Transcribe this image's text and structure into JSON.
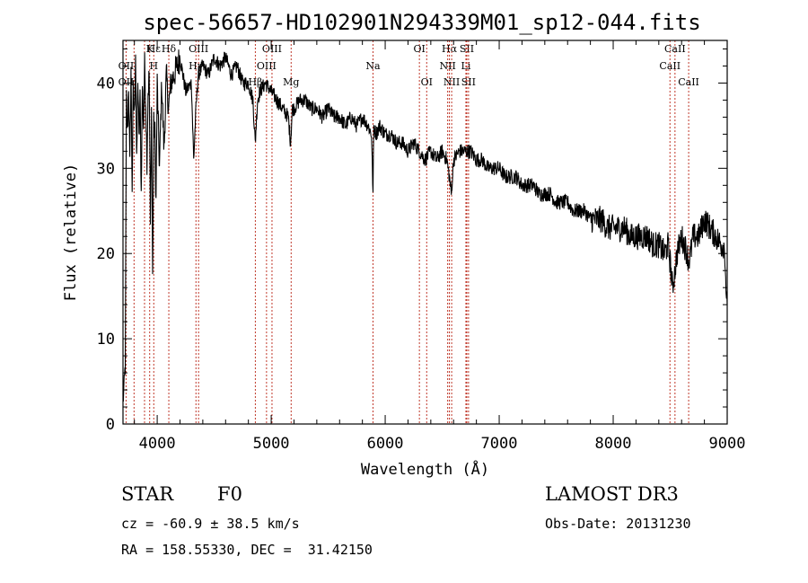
{
  "chart_data": {
    "type": "line",
    "title": "spec-56657-HD102901N294339M01_sp12-044.fits",
    "xlabel": "Wavelength (Å)",
    "ylabel": "Flux (relative)",
    "xlim": [
      3700,
      9000
    ],
    "ylim": [
      0,
      45
    ],
    "xticks": [
      4000,
      5000,
      6000,
      7000,
      8000,
      9000
    ],
    "yticks": [
      0,
      10,
      20,
      30,
      40
    ],
    "series": [
      {
        "name": "spectrum",
        "x": [
          3700,
          3710,
          3720,
          3730,
          3740,
          3750,
          3760,
          3770,
          3780,
          3790,
          3800,
          3810,
          3820,
          3830,
          3840,
          3850,
          3860,
          3870,
          3880,
          3890,
          3900,
          3910,
          3920,
          3930,
          3940,
          3950,
          3960,
          3970,
          3980,
          3990,
          4000,
          4020,
          4040,
          4060,
          4080,
          4100,
          4120,
          4150,
          4200,
          4250,
          4300,
          4320,
          4340,
          4360,
          4400,
          4450,
          4500,
          4550,
          4600,
          4650,
          4700,
          4750,
          4800,
          4840,
          4860,
          4880,
          4900,
          4950,
          5000,
          5050,
          5100,
          5150,
          5170,
          5185,
          5200,
          5250,
          5300,
          5350,
          5400,
          5450,
          5500,
          5550,
          5600,
          5650,
          5700,
          5750,
          5800,
          5850,
          5880,
          5893,
          5900,
          5920,
          5950,
          6000,
          6050,
          6100,
          6150,
          6200,
          6250,
          6300,
          6350,
          6400,
          6450,
          6500,
          6540,
          6563,
          6580,
          6600,
          6650,
          6700,
          6750,
          6800,
          6850,
          6900,
          6950,
          7000,
          7050,
          7100,
          7150,
          7200,
          7250,
          7300,
          7350,
          7400,
          7450,
          7500,
          7550,
          7600,
          7650,
          7700,
          7750,
          7800,
          7850,
          7900,
          7950,
          8000,
          8050,
          8100,
          8150,
          8200,
          8250,
          8300,
          8350,
          8400,
          8450,
          8480,
          8500,
          8520,
          8542,
          8560,
          8600,
          8650,
          8662,
          8680,
          8700,
          8750,
          8800,
          8850,
          8900,
          8950,
          8970,
          8980,
          8990,
          9000
        ],
        "y": [
          3,
          4,
          7,
          38,
          34,
          40,
          30,
          42,
          28,
          39,
          36,
          44,
          30,
          41,
          33,
          38,
          27,
          40,
          35,
          42,
          38,
          31,
          39,
          41,
          23,
          37,
          17,
          35,
          34,
          26,
          40,
          30,
          40,
          32,
          41,
          37,
          40,
          41,
          43,
          39,
          40,
          31,
          37,
          41,
          42,
          41,
          43,
          42,
          43,
          41,
          42,
          40,
          40,
          38,
          33,
          38,
          39,
          40,
          39,
          38,
          37,
          36,
          33,
          37,
          37,
          38,
          38,
          37,
          37,
          36,
          37,
          36,
          36,
          35,
          36,
          35,
          36,
          35,
          34,
          27,
          35,
          34,
          35,
          34,
          34,
          33,
          33,
          32,
          33,
          32,
          31,
          32,
          31,
          32,
          31,
          29,
          27,
          31,
          32,
          32,
          32,
          31,
          31,
          30,
          30,
          30,
          29,
          29,
          29,
          28,
          28,
          28,
          27,
          27,
          27,
          26,
          26,
          26,
          25,
          25,
          25,
          24,
          24,
          24,
          23,
          23,
          23,
          23,
          22,
          22,
          22,
          22,
          21,
          21,
          20,
          21,
          19,
          16,
          18,
          20,
          22,
          20,
          19,
          20,
          22,
          22,
          24,
          23,
          22,
          21,
          21,
          20,
          16,
          14
        ]
      }
    ],
    "lines": [
      {
        "name": "Hε",
        "wl": 3970,
        "row": 0
      },
      {
        "name": "K",
        "wl": 3934,
        "row": 0
      },
      {
        "name": "Hδ",
        "wl": 4102,
        "row": 0
      },
      {
        "name": "OIII",
        "wl": 4363,
        "row": 0
      },
      {
        "name": "OIII",
        "wl": 5007,
        "row": 0
      },
      {
        "name": "OI",
        "wl": 6300,
        "row": 0
      },
      {
        "name": "Hα",
        "wl": 6563,
        "row": 0
      },
      {
        "name": "SII",
        "wl": 6716,
        "row": 0
      },
      {
        "name": "CaII",
        "wl": 8542,
        "row": 0
      },
      {
        "name": "OII",
        "wl": 3727,
        "row": 1
      },
      {
        "name": "H",
        "wl": 3970,
        "row": 1
      },
      {
        "name": "Hγ",
        "wl": 4340,
        "row": 1
      },
      {
        "name": "OIII",
        "wl": 4959,
        "row": 1
      },
      {
        "name": "Na",
        "wl": 5893,
        "row": 1
      },
      {
        "name": "NII",
        "wl": 6548,
        "row": 1
      },
      {
        "name": "Li",
        "wl": 6708,
        "row": 1
      },
      {
        "name": "CaII",
        "wl": 8498,
        "row": 1
      },
      {
        "name": "OII",
        "wl": 3727,
        "row": 2
      },
      {
        "name": "Hβ",
        "wl": 4861,
        "row": 2
      },
      {
        "name": "Mg",
        "wl": 5175,
        "row": 2
      },
      {
        "name": "OI",
        "wl": 6364,
        "row": 2
      },
      {
        "name": "NII",
        "wl": 6583,
        "row": 2
      },
      {
        "name": "SII",
        "wl": 6731,
        "row": 2
      },
      {
        "name": "CaII",
        "wl": 8662,
        "row": 2
      }
    ],
    "extra_line_markers": [
      3797,
      3889,
      4102,
      4340
    ]
  },
  "info": {
    "obj_class": "STAR",
    "subclass": "F0",
    "survey": "LAMOST DR3",
    "cz": "cz = -60.9 ± 38.5 km/s",
    "obs_date": "Obs-Date: 20131230",
    "coords": "RA = 158.55330, DEC =  31.42150"
  }
}
